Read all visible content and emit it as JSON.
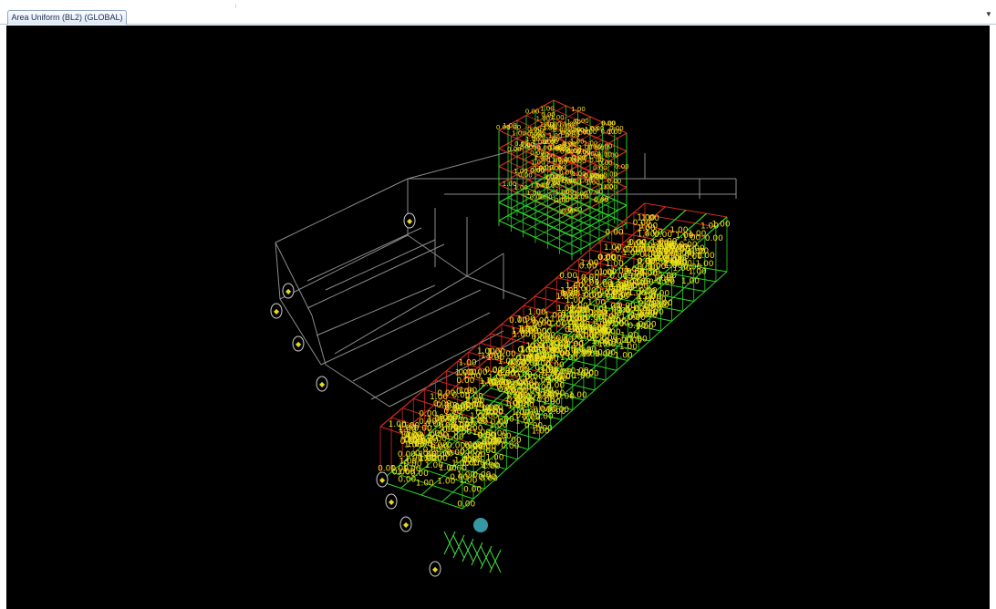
{
  "tabs": [
    {
      "label": "Area Uniform (BL2) (GLOBAL)",
      "active": true
    }
  ],
  "dropdown_icon": "chevron-down-icon",
  "viewport": {
    "background": "#000000",
    "colors": {
      "grid": "#8c8c8c",
      "frame_red": "#d22a1e",
      "frame_green": "#2bd42b",
      "value_text": "#f2e21a",
      "joint_label": "#e8d91c",
      "joint_label_ring": "#cfcfcf",
      "restraint": "#3fe03f",
      "highlight": "#4fd8e8"
    },
    "load_value_texts": [
      "0.00",
      "1.00"
    ]
  }
}
